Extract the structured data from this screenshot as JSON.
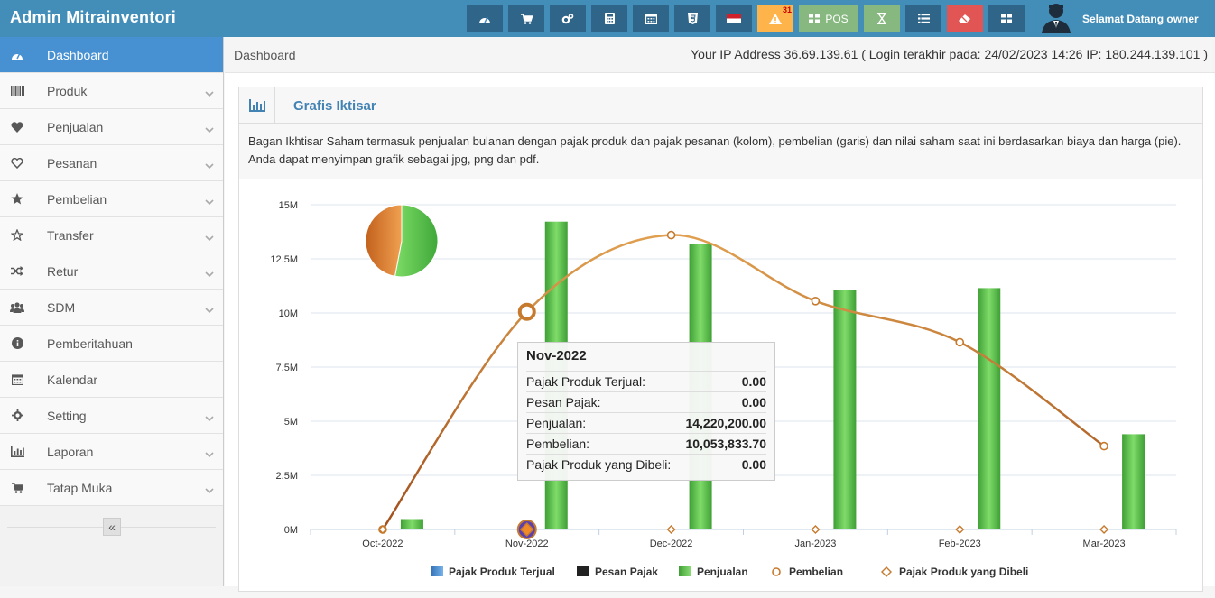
{
  "app": {
    "title": "Admin Mitrainventori"
  },
  "navbar": {
    "buttons": [
      {
        "name": "dashboard-nav-button",
        "icon": "tachometer-icon",
        "color": "#2e6589",
        "label": ""
      },
      {
        "name": "cart-nav-button",
        "icon": "cart-icon",
        "color": "#2e6589",
        "label": ""
      },
      {
        "name": "cogs-nav-button",
        "icon": "cogs-icon",
        "color": "#2e6589",
        "label": ""
      },
      {
        "name": "calculator-nav-button",
        "icon": "calculator-icon",
        "color": "#2e6589",
        "label": ""
      },
      {
        "name": "calendar-nav-button",
        "icon": "calendar-icon",
        "color": "#2e6589",
        "label": ""
      },
      {
        "name": "html5-nav-button",
        "icon": "html5-icon",
        "color": "#2e6589",
        "label": ""
      },
      {
        "name": "language-nav-button",
        "icon": "indonesia-flag-icon",
        "color": "#2e6589",
        "label": ""
      },
      {
        "name": "alerts-nav-button",
        "icon": "warning-icon",
        "color": "#ffb44b",
        "label": "",
        "badge": "31"
      },
      {
        "name": "pos-nav-button",
        "icon": "grid-icon",
        "color": "#87b87f",
        "label": "POS"
      },
      {
        "name": "hourglass-nav-button",
        "icon": "hourglass-icon",
        "color": "#87b87f",
        "label": ""
      },
      {
        "name": "list-nav-button",
        "icon": "list-icon",
        "color": "#2e6589",
        "label": ""
      },
      {
        "name": "eraser-nav-button",
        "icon": "eraser-icon",
        "color": "#e25555",
        "label": ""
      },
      {
        "name": "grid-nav-button",
        "icon": "grid-icon",
        "color": "#2e6589",
        "label": ""
      }
    ],
    "user_greeting": "Selamat Datang owner"
  },
  "sidebar": {
    "items": [
      {
        "label": "Dashboard",
        "icon": "tachometer-icon",
        "active": true,
        "chevron": false
      },
      {
        "label": "Produk",
        "icon": "barcode-icon",
        "active": false,
        "chevron": true
      },
      {
        "label": "Penjualan",
        "icon": "heart-icon",
        "active": false,
        "chevron": true
      },
      {
        "label": "Pesanan",
        "icon": "heart-outline-icon",
        "active": false,
        "chevron": true
      },
      {
        "label": "Pembelian",
        "icon": "star-icon",
        "active": false,
        "chevron": true
      },
      {
        "label": "Transfer",
        "icon": "star-outline-icon",
        "active": false,
        "chevron": true
      },
      {
        "label": "Retur",
        "icon": "random-icon",
        "active": false,
        "chevron": true
      },
      {
        "label": "SDM",
        "icon": "users-icon",
        "active": false,
        "chevron": true
      },
      {
        "label": "Pemberitahuan",
        "icon": "info-icon",
        "active": false,
        "chevron": false
      },
      {
        "label": "Kalendar",
        "icon": "calendar-icon",
        "active": false,
        "chevron": false
      },
      {
        "label": "Setting",
        "icon": "cog-icon",
        "active": false,
        "chevron": true
      },
      {
        "label": "Laporan",
        "icon": "bar-chart-icon",
        "active": false,
        "chevron": true
      },
      {
        "label": "Tatap Muka",
        "icon": "cart-icon",
        "active": false,
        "chevron": true
      }
    ],
    "collapse_glyph": "«"
  },
  "breadcrumb": {
    "current": "Dashboard"
  },
  "ip_info": "Your IP Address 36.69.139.61 ( Login terakhir pada: 24/02/2023 14:26 IP: 180.244.139.101 )",
  "panel": {
    "title": "Grafis Iktisar",
    "description": "Bagan Ikhtisar Saham termasuk penjualan bulanan dengan pajak produk dan pajak pesanan (kolom), pembelian (garis) dan nilai saham saat ini berdasarkan biaya dan harga (pie). Anda dapat menyimpan grafik sebagai jpg, png dan pdf."
  },
  "tooltip": {
    "title": "Nov-2022",
    "rows": [
      {
        "label": "Pajak Produk Terjual:",
        "value": "0.00"
      },
      {
        "label": "Pesan Pajak:",
        "value": "0.00"
      },
      {
        "label": "Penjualan:",
        "value": "14,220,200.00"
      },
      {
        "label": "Pembelian:",
        "value": "10,053,833.70"
      },
      {
        "label": "Pajak Produk yang Dibeli:",
        "value": "0.00"
      }
    ]
  },
  "chart_data": {
    "type": "bar",
    "categories": [
      "Oct-2022",
      "Nov-2022",
      "Dec-2022",
      "Jan-2023",
      "Feb-2023",
      "Mar-2023"
    ],
    "y_tick_labels": [
      "0M",
      "2.5M",
      "5M",
      "7.5M",
      "10M",
      "12.5M",
      "15M"
    ],
    "ylim": [
      0,
      15000000
    ],
    "grid": true,
    "legend_placement": "bottom",
    "series": [
      {
        "name": "Pajak Produk Terjual",
        "type": "bar",
        "color": "#4a8fd6",
        "values": [
          0,
          0,
          0,
          0,
          0,
          0
        ]
      },
      {
        "name": "Pesan Pajak",
        "type": "bar",
        "color": "#222222",
        "values": [
          0,
          0,
          0,
          0,
          0,
          0
        ]
      },
      {
        "name": "Penjualan",
        "type": "bar",
        "color": "#5fbf4a",
        "values": [
          480000,
          14220200,
          13200000,
          11050000,
          11150000,
          4400000
        ]
      },
      {
        "name": "Pembelian",
        "type": "line",
        "color": "#c67a2e",
        "values": [
          0,
          10053833.7,
          13600000,
          10550000,
          8650000,
          3850000
        ]
      },
      {
        "name": "Pajak Produk yang Dibeli",
        "type": "line",
        "color": "#c67a2e",
        "values": [
          0,
          0,
          0,
          0,
          0,
          0
        ]
      }
    ],
    "pie": {
      "type": "pie",
      "slices": [
        {
          "value": 53,
          "color": "#5fbf4a"
        },
        {
          "value": 47,
          "color": "#d87a2e"
        }
      ]
    }
  }
}
